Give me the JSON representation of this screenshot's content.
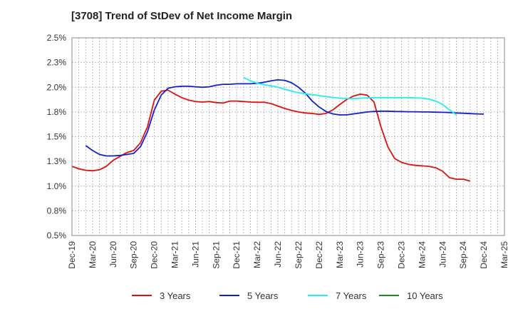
{
  "title": "[3708]  Trend of StDev of Net Income Margin",
  "chart_data": {
    "type": "line",
    "title": "[3708]  Trend of StDev of Net Income Margin",
    "xlabel": "",
    "ylabel": "",
    "y_ticks": [
      "0.5%",
      "0.8%",
      "1.0%",
      "1.3%",
      "1.5%",
      "1.8%",
      "2.0%",
      "2.3%",
      "2.5%"
    ],
    "x_ticks": [
      "Dec-19",
      "Mar-20",
      "Jun-20",
      "Sep-20",
      "Dec-20",
      "Mar-21",
      "Jun-21",
      "Sep-21",
      "Dec-21",
      "Mar-22",
      "Jun-22",
      "Sep-22",
      "Dec-22",
      "Mar-23",
      "Jun-23",
      "Sep-23",
      "Dec-23",
      "Mar-24",
      "Jun-24",
      "Sep-24",
      "Dec-24",
      "Mar-25"
    ],
    "ylim": [
      0.5,
      2.5
    ],
    "grid": true,
    "legend_position": "bottom",
    "series": [
      {
        "name": "3 Years",
        "color": "#dd1111",
        "values": [
          1.2,
          1.175,
          1.16,
          1.155,
          1.165,
          1.2,
          1.26,
          1.3,
          1.34,
          1.36,
          1.44,
          1.6,
          1.87,
          1.96,
          1.97,
          1.93,
          1.895,
          1.87,
          1.855,
          1.85,
          1.855,
          1.845,
          1.84,
          1.86,
          1.86,
          1.855,
          1.85,
          1.848,
          1.848,
          1.835,
          1.81,
          1.785,
          1.765,
          1.75,
          1.74,
          1.735,
          1.725,
          1.735,
          1.77,
          1.825,
          1.875,
          1.91,
          1.93,
          1.92,
          1.85,
          1.6,
          1.4,
          1.28,
          1.24,
          1.22,
          1.21,
          1.205,
          1.2,
          1.185,
          1.15,
          1.085,
          1.07,
          1.07,
          1.05
        ],
        "x_start_index": 0
      },
      {
        "name": "5 Years",
        "color": "#1122cc",
        "values": [
          1.41,
          1.36,
          1.32,
          1.305,
          1.305,
          1.31,
          1.32,
          1.33,
          1.4,
          1.55,
          1.77,
          1.92,
          1.99,
          2.005,
          2.01,
          2.01,
          2.005,
          2.0,
          2.005,
          2.02,
          2.03,
          2.03,
          2.035,
          2.035,
          2.035,
          2.04,
          2.05,
          2.065,
          2.075,
          2.07,
          2.045,
          2.0,
          1.94,
          1.86,
          1.8,
          1.755,
          1.73,
          1.72,
          1.72,
          1.73,
          1.74,
          1.75,
          1.755,
          1.758,
          1.758,
          1.755,
          1.754,
          1.752,
          1.752,
          1.75,
          1.75,
          1.748,
          1.746,
          1.744,
          1.74,
          1.737,
          1.733,
          1.73,
          1.728
        ],
        "x_start_index": 2
      },
      {
        "name": "7 Years",
        "color": "#22eeee",
        "values": [
          2.1,
          2.065,
          2.04,
          2.025,
          2.015,
          2.0,
          1.98,
          1.96,
          1.945,
          1.935,
          1.925,
          1.915,
          1.905,
          1.897,
          1.89,
          1.885,
          1.885,
          1.89,
          1.892,
          1.895,
          1.895,
          1.895,
          1.895,
          1.895,
          1.895,
          1.893,
          1.89,
          1.88,
          1.86,
          1.825,
          1.77,
          1.72
        ],
        "x_start_index": 25
      },
      {
        "name": "10 Years",
        "color": "#228822",
        "values": [],
        "x_start_index": 0
      }
    ]
  }
}
